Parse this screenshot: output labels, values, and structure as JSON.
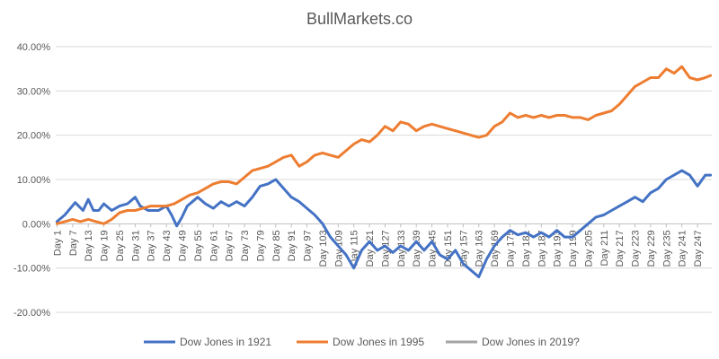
{
  "chart_data": {
    "type": "line",
    "title": "BullMarkets.co",
    "xlabel": "",
    "ylabel": "",
    "ylim": [
      -20,
      40
    ],
    "yticks": [
      "-20.00%",
      "-10.00%",
      "0.00%",
      "10.00%",
      "20.00%",
      "30.00%",
      "40.00%"
    ],
    "ytick_values": [
      -20,
      -10,
      0,
      10,
      20,
      30,
      40
    ],
    "x_range": [
      1,
      252
    ],
    "xtick_labels": [
      "Day 1",
      "Day 7",
      "Day 13",
      "Day 19",
      "Day 25",
      "Day 31",
      "Day 37",
      "Day 43",
      "Day 49",
      "Day 55",
      "Day 61",
      "Day 67",
      "Day 73",
      "Day 79",
      "Day 85",
      "Day 91",
      "Day 97",
      "Day 103",
      "Day 109",
      "Day 115",
      "Day 121",
      "Day 127",
      "Day 133",
      "Day 139",
      "Day 145",
      "Day 151",
      "Day 157",
      "Day 163",
      "Day 169",
      "Day 175",
      "Day 181",
      "Day 187",
      "Day 193",
      "Day 199",
      "Day 205",
      "Day 211",
      "Day 217",
      "Day 223",
      "Day 229",
      "Day 235",
      "Day 241",
      "Day 247"
    ],
    "xtick_days": [
      1,
      7,
      13,
      19,
      25,
      31,
      37,
      43,
      49,
      55,
      61,
      67,
      73,
      79,
      85,
      91,
      97,
      103,
      109,
      115,
      121,
      127,
      133,
      139,
      145,
      151,
      157,
      163,
      169,
      175,
      181,
      187,
      193,
      199,
      205,
      211,
      217,
      223,
      229,
      235,
      241,
      247
    ],
    "grid": true,
    "legend_position": "bottom",
    "series": [
      {
        "name": "Dow Jones in 1921",
        "color": "#4472C4",
        "x": [
          1,
          4,
          8,
          11,
          13,
          15,
          17,
          19,
          22,
          25,
          28,
          31,
          33,
          36,
          40,
          43,
          45,
          47,
          49,
          51,
          53,
          55,
          58,
          61,
          64,
          67,
          70,
          73,
          76,
          79,
          82,
          85,
          88,
          91,
          94,
          97,
          100,
          103,
          106,
          109,
          112,
          115,
          118,
          121,
          124,
          127,
          130,
          133,
          136,
          139,
          142,
          145,
          148,
          151,
          154,
          157,
          160,
          163,
          166,
          169,
          172,
          175,
          178,
          181,
          184,
          187,
          190,
          193,
          196,
          199,
          202,
          205,
          208,
          211,
          214,
          217,
          220,
          223,
          226,
          229,
          232,
          235,
          238,
          241,
          244,
          247,
          250,
          252
        ],
        "y": [
          0.5,
          2,
          4.8,
          3,
          5.5,
          3,
          3,
          4.5,
          3,
          4,
          4.5,
          6,
          4,
          3,
          3,
          4,
          2,
          -0.5,
          1.5,
          4,
          5,
          6,
          4.5,
          3.5,
          5,
          4,
          5,
          4,
          6,
          8.5,
          9,
          10,
          8,
          6,
          5,
          3.5,
          2,
          0,
          -3,
          -5,
          -7,
          -10,
          -6,
          -4,
          -6,
          -5,
          -6.5,
          -5,
          -6,
          -4,
          -6,
          -4,
          -7,
          -8,
          -6,
          -9,
          -10.5,
          -12,
          -8,
          -5,
          -3,
          -1.5,
          -2.5,
          -2,
          -3,
          -2,
          -3,
          -1.5,
          -3,
          -3,
          -1.5,
          0,
          1.5,
          2,
          3,
          4,
          5,
          6,
          5,
          7,
          8,
          10,
          11,
          12,
          11,
          8.5,
          11,
          11
        ]
      },
      {
        "name": "Dow Jones in 1995",
        "color": "#ED7D31",
        "x": [
          1,
          4,
          7,
          10,
          13,
          16,
          19,
          22,
          25,
          28,
          31,
          34,
          37,
          40,
          43,
          46,
          49,
          52,
          55,
          58,
          61,
          64,
          67,
          70,
          73,
          76,
          79,
          82,
          85,
          88,
          91,
          94,
          97,
          100,
          103,
          106,
          109,
          112,
          115,
          118,
          121,
          124,
          127,
          130,
          133,
          136,
          139,
          142,
          145,
          148,
          151,
          154,
          157,
          160,
          163,
          166,
          169,
          172,
          175,
          178,
          181,
          184,
          187,
          190,
          193,
          196,
          199,
          202,
          205,
          208,
          211,
          214,
          217,
          220,
          223,
          226,
          229,
          232,
          235,
          238,
          241,
          244,
          247,
          250,
          252
        ],
        "y": [
          0,
          0.5,
          1,
          0.5,
          1,
          0.5,
          0,
          1,
          2.5,
          3,
          3,
          3.5,
          4,
          4,
          4,
          4.5,
          5.5,
          6.5,
          7,
          8,
          9,
          9.5,
          9.5,
          9,
          10.5,
          12,
          12.5,
          13,
          14,
          15,
          15.5,
          13,
          14,
          15.5,
          16,
          15.5,
          15,
          16.5,
          18,
          19,
          18.5,
          20,
          22,
          21,
          23,
          22.5,
          21,
          22,
          22.5,
          22,
          21.5,
          21,
          20.5,
          20,
          19.5,
          20,
          22,
          23,
          25,
          24,
          24.5,
          24,
          24.5,
          24,
          24.5,
          24.5,
          24,
          24,
          23.5,
          24.5,
          25,
          25.5,
          27,
          29,
          31,
          32,
          33,
          33,
          35,
          34,
          35.5,
          33,
          32.5,
          33,
          33.5
        ]
      },
      {
        "name": "Dow Jones in 2019?",
        "color": "#A5A5A5",
        "x": [],
        "y": []
      }
    ]
  }
}
